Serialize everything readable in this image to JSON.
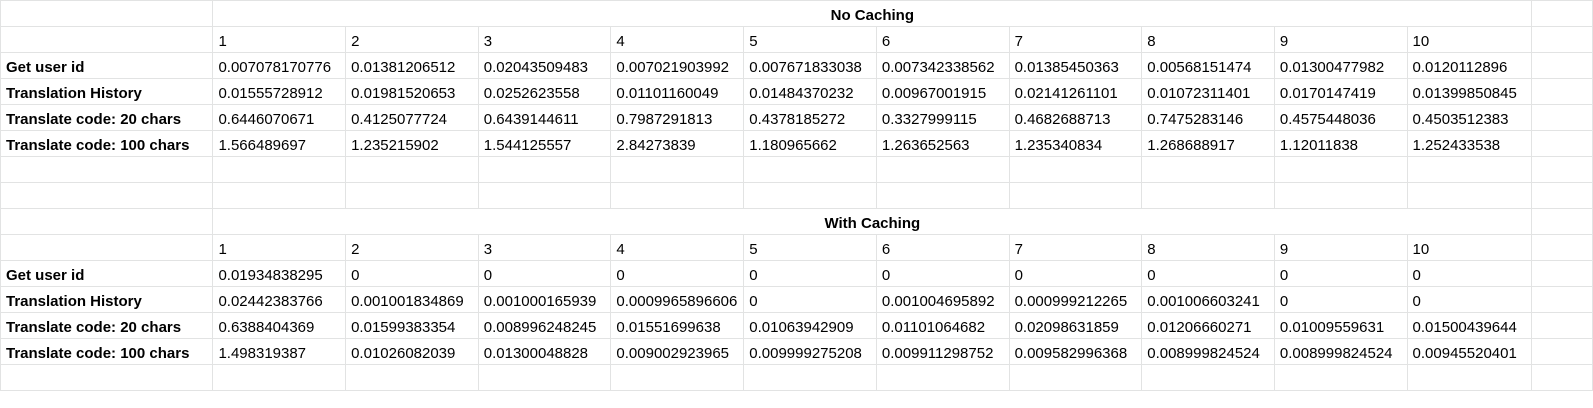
{
  "sections": [
    {
      "title": "No Caching",
      "columns": [
        "1",
        "2",
        "3",
        "4",
        "5",
        "6",
        "7",
        "8",
        "9",
        "10"
      ],
      "rows": [
        {
          "label": "Get user id",
          "values": [
            "0.007078170776",
            "0.01381206512",
            "0.02043509483",
            "0.007021903992",
            "0.007671833038",
            "0.007342338562",
            "0.01385450363",
            "0.00568151474",
            "0.01300477982",
            "0.0120112896"
          ]
        },
        {
          "label": "Translation History",
          "values": [
            "0.01555728912",
            "0.01981520653",
            "0.0252623558",
            "0.01101160049",
            "0.01484370232",
            "0.00967001915",
            "0.02141261101",
            "0.01072311401",
            "0.0170147419",
            "0.01399850845"
          ]
        },
        {
          "label": "Translate code: 20 chars",
          "values": [
            "0.6446070671",
            "0.4125077724",
            "0.6439144611",
            "0.7987291813",
            "0.4378185272",
            "0.3327999115",
            "0.4682688713",
            "0.7475283146",
            "0.4575448036",
            "0.4503512383"
          ]
        },
        {
          "label": "Translate code: 100 chars",
          "values": [
            "1.566489697",
            "1.235215902",
            "1.544125557",
            "2.84273839",
            "1.180965662",
            "1.263652563",
            "1.235340834",
            "1.268688917",
            "1.12011838",
            "1.252433538"
          ]
        }
      ]
    },
    {
      "title": "With Caching",
      "columns": [
        "1",
        "2",
        "3",
        "4",
        "5",
        "6",
        "7",
        "8",
        "9",
        "10"
      ],
      "rows": [
        {
          "label": "Get user id",
          "values": [
            "0.01934838295",
            "0",
            "0",
            "0",
            "0",
            "0",
            "0",
            "0",
            "0",
            "0"
          ]
        },
        {
          "label": "Translation History",
          "values": [
            "0.02442383766",
            "0.001001834869",
            "0.001000165939",
            "0.0009965896606",
            "0",
            "0.001004695892",
            "0.000999212265",
            "0.001006603241",
            "0",
            "0"
          ]
        },
        {
          "label": "Translate code: 20 chars",
          "values": [
            "0.6388404369",
            "0.01599383354",
            "0.008996248245",
            "0.01551699638",
            "0.01063942909",
            "0.01101064682",
            "0.02098631859",
            "0.01206660271",
            "0.01009559631",
            "0.01500439644"
          ]
        },
        {
          "label": "Translate code: 100 chars",
          "values": [
            "1.498319387",
            "0.01026082039",
            "0.01300048828",
            "0.009002923965",
            "0.009999275208",
            "0.009911298752",
            "0.009582996368",
            "0.008999824524",
            "0.008999824524",
            "0.00945520401"
          ]
        }
      ]
    }
  ]
}
